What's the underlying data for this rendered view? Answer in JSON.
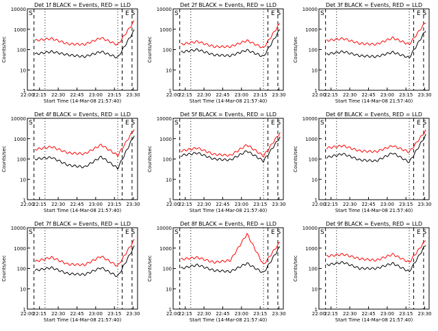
{
  "colors": {
    "events": "#000000",
    "lld": "#ff0000",
    "axes": "#000000",
    "background": "#ffffff"
  },
  "axis_common": {
    "ylabel": "Counts/sec",
    "xlabel": "Start Time (14-Mar-08 21:57:40)",
    "x_tick_labels": [
      "22:00",
      "22:15",
      "22:30",
      "22:45",
      "23:00",
      "23:15",
      "23:30"
    ],
    "y_tick_labels": [
      "1",
      "10",
      "100",
      "1000",
      "10000"
    ]
  },
  "chart_data": [
    {
      "type": "line",
      "title": "Det 1f BLACK = Events, RED = LLD",
      "xlabel": "Start Time (14-Mar-08 21:57:40)",
      "ylabel": "Counts/sec",
      "x": [
        "22:00",
        "22:15",
        "22:30",
        "22:45",
        "23:00",
        "23:15",
        "23:30"
      ],
      "yscale": "log",
      "ylim": [
        1,
        10000
      ],
      "grid": false,
      "corner_labels": {
        "left": "S",
        "right": "E S"
      },
      "series": [
        {
          "name": "Events",
          "color": "#000000",
          "values": [
            60,
            80,
            55,
            45,
            80,
            40,
            900
          ]
        },
        {
          "name": "LLD",
          "color": "#ff0000",
          "values": [
            280,
            350,
            190,
            180,
            380,
            170,
            2500
          ]
        }
      ]
    },
    {
      "type": "line",
      "title": "Det 2f BLACK = Events, RED = LLD",
      "xlabel": "Start Time (14-Mar-08 21:57:40)",
      "ylabel": "Counts/sec",
      "x": [
        "22:00",
        "22:15",
        "22:30",
        "22:45",
        "23:00",
        "23:15",
        "23:30"
      ],
      "yscale": "log",
      "ylim": [
        1,
        10000
      ],
      "grid": false,
      "corner_labels": {
        "left": "S",
        "right": "E S"
      },
      "series": [
        {
          "name": "Events",
          "color": "#000000",
          "values": [
            75,
            100,
            55,
            50,
            95,
            45,
            1000
          ]
        },
        {
          "name": "LLD",
          "color": "#ff0000",
          "values": [
            180,
            250,
            140,
            140,
            280,
            120,
            2000
          ]
        }
      ]
    },
    {
      "type": "line",
      "title": "Det 3f BLACK = Events, RED = LLD",
      "xlabel": "Start Time (14-Mar-08 21:57:40)",
      "ylabel": "Counts/sec",
      "x": [
        "22:00",
        "22:15",
        "22:30",
        "22:45",
        "23:00",
        "23:15",
        "23:30"
      ],
      "yscale": "log",
      "ylim": [
        1,
        10000
      ],
      "grid": false,
      "corner_labels": {
        "left": "S",
        "right": "E S"
      },
      "series": [
        {
          "name": "Events",
          "color": "#000000",
          "values": [
            60,
            80,
            50,
            45,
            75,
            40,
            900
          ]
        },
        {
          "name": "LLD",
          "color": "#ff0000",
          "values": [
            280,
            350,
            200,
            180,
            380,
            180,
            2300
          ]
        }
      ]
    },
    {
      "type": "line",
      "title": "Det 4f BLACK = Events, RED = LLD",
      "xlabel": "Start Time (14-Mar-08 21:57:40)",
      "ylabel": "Counts/sec",
      "x": [
        "22:00",
        "22:15",
        "22:30",
        "22:45",
        "23:00",
        "23:15",
        "23:30"
      ],
      "yscale": "log",
      "ylim": [
        1,
        10000
      ],
      "grid": false,
      "corner_labels": {
        "left": "S",
        "right": "E S"
      },
      "series": [
        {
          "name": "Events",
          "color": "#000000",
          "values": [
            100,
            120,
            50,
            40,
            130,
            35,
            1500
          ]
        },
        {
          "name": "LLD",
          "color": "#ff0000",
          "values": [
            300,
            400,
            200,
            180,
            500,
            150,
            3000
          ]
        }
      ]
    },
    {
      "type": "line",
      "title": "Det 5f BLACK = Events, RED = LLD",
      "xlabel": "Start Time (14-Mar-08 21:57:40)",
      "ylabel": "Counts/sec",
      "x": [
        "22:00",
        "22:15",
        "22:30",
        "22:45",
        "23:00",
        "23:15",
        "23:30"
      ],
      "yscale": "log",
      "ylim": [
        1,
        10000
      ],
      "grid": false,
      "corner_labels": {
        "left": "S",
        "right": "E S"
      },
      "series": [
        {
          "name": "Events",
          "color": "#000000",
          "values": [
            150,
            200,
            100,
            90,
            250,
            80,
            1200
          ]
        },
        {
          "name": "LLD",
          "color": "#ff0000",
          "values": [
            250,
            350,
            170,
            150,
            500,
            140,
            2000
          ]
        }
      ]
    },
    {
      "type": "line",
      "title": "Det 6f BLACK = Events, RED = LLD",
      "xlabel": "Start Time (14-Mar-08 21:57:40)",
      "ylabel": "Counts/sec",
      "x": [
        "22:00",
        "22:15",
        "22:30",
        "22:45",
        "23:00",
        "23:15",
        "23:30"
      ],
      "yscale": "log",
      "ylim": [
        1,
        10000
      ],
      "grid": false,
      "corner_labels": {
        "left": "S",
        "right": "E S"
      },
      "series": [
        {
          "name": "Events",
          "color": "#000000",
          "values": [
            120,
            180,
            90,
            80,
            200,
            70,
            1500
          ]
        },
        {
          "name": "LLD",
          "color": "#ff0000",
          "values": [
            350,
            450,
            250,
            230,
            450,
            220,
            2500
          ]
        }
      ]
    },
    {
      "type": "line",
      "title": "Det 7f BLACK = Events, RED = LLD",
      "xlabel": "Start Time (14-Mar-08 21:57:40)",
      "ylabel": "Counts/sec",
      "x": [
        "22:00",
        "22:15",
        "22:30",
        "22:45",
        "23:00",
        "23:15",
        "23:30"
      ],
      "yscale": "log",
      "ylim": [
        1,
        10000
      ],
      "grid": false,
      "corner_labels": {
        "left": "S",
        "right": "E S"
      },
      "series": [
        {
          "name": "Events",
          "color": "#000000",
          "values": [
            80,
            110,
            55,
            50,
            110,
            40,
            1200
          ]
        },
        {
          "name": "LLD",
          "color": "#ff0000",
          "values": [
            220,
            350,
            160,
            150,
            400,
            130,
            2500
          ]
        }
      ]
    },
    {
      "type": "line",
      "title": "Det 8f BLACK = Events, RED = LLD",
      "xlabel": "Start Time (14-Mar-08 21:57:40)",
      "ylabel": "Counts/sec",
      "x": [
        "22:00",
        "22:15",
        "22:30",
        "22:45",
        "23:00",
        "23:15",
        "23:30"
      ],
      "yscale": "log",
      "ylim": [
        1,
        10000
      ],
      "grid": false,
      "corner_labels": {
        "left": "S",
        "right": "E S"
      },
      "series": [
        {
          "name": "Events",
          "color": "#000000",
          "values": [
            100,
            150,
            80,
            70,
            180,
            60,
            1200
          ]
        },
        {
          "name": "LLD",
          "color": "#ff0000",
          "values": [
            280,
            350,
            200,
            250,
            5000,
            150,
            2000
          ]
        }
      ]
    },
    {
      "type": "line",
      "title": "Det 9f BLACK = Events, RED = LLD",
      "xlabel": "Start Time (14-Mar-08 21:57:40)",
      "ylabel": "Counts/sec",
      "x": [
        "22:00",
        "22:15",
        "22:30",
        "22:45",
        "23:00",
        "23:15",
        "23:30"
      ],
      "yscale": "log",
      "ylim": [
        1,
        10000
      ],
      "grid": false,
      "corner_labels": {
        "left": "S",
        "right": "E S"
      },
      "series": [
        {
          "name": "Events",
          "color": "#000000",
          "values": [
            150,
            200,
            100,
            100,
            180,
            70,
            1500
          ]
        },
        {
          "name": "LLD",
          "color": "#ff0000",
          "values": [
            400,
            500,
            300,
            250,
            500,
            200,
            2500
          ]
        }
      ]
    }
  ]
}
